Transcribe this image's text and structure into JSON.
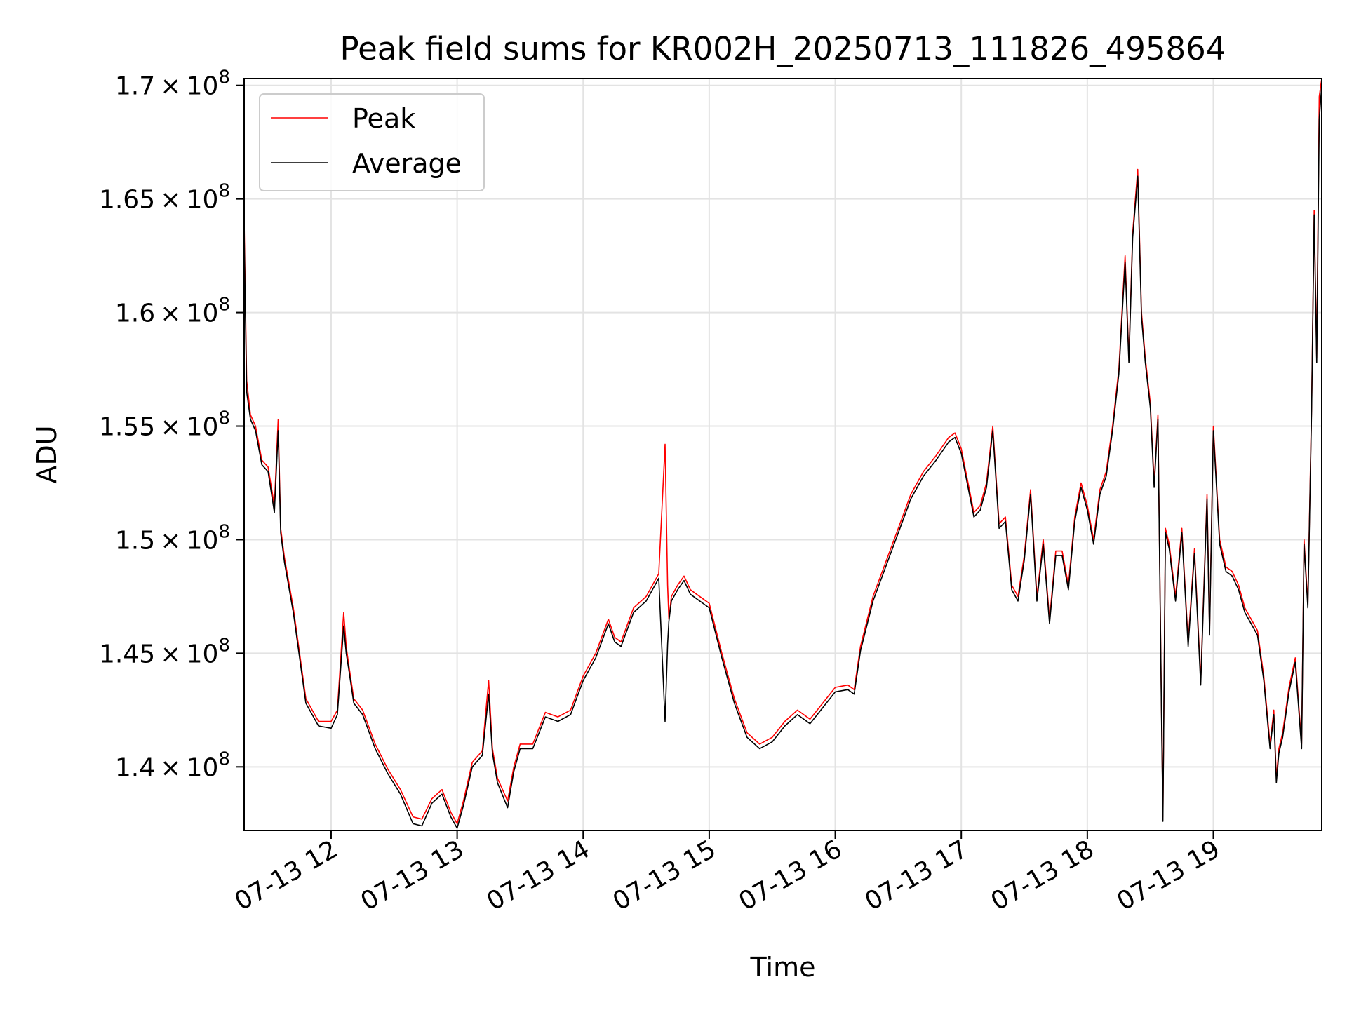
{
  "chart_data": {
    "type": "line",
    "title": "Peak field sums for KR002H_20250713_111826_495864",
    "xlabel": "Time",
    "ylabel": "ADU",
    "xlim_hours": [
      11.31,
      19.86
    ],
    "ylim": [
      137200000,
      170300000
    ],
    "grid": true,
    "legend_position": "top-left",
    "x_ticks": [
      {
        "value": 12,
        "label": "07-13 12"
      },
      {
        "value": 13,
        "label": "07-13 13"
      },
      {
        "value": 14,
        "label": "07-13 14"
      },
      {
        "value": 15,
        "label": "07-13 15"
      },
      {
        "value": 16,
        "label": "07-13 16"
      },
      {
        "value": 17,
        "label": "07-13 17"
      },
      {
        "value": 18,
        "label": "07-13 18"
      },
      {
        "value": 19,
        "label": "07-13 19"
      }
    ],
    "y_ticks": [
      {
        "value": 140000000,
        "mantissa": "1.4",
        "exp": "8"
      },
      {
        "value": 145000000,
        "mantissa": "1.45",
        "exp": "8"
      },
      {
        "value": 150000000,
        "mantissa": "1.5",
        "exp": "8"
      },
      {
        "value": 155000000,
        "mantissa": "1.55",
        "exp": "8"
      },
      {
        "value": 160000000,
        "mantissa": "1.6",
        "exp": "8"
      },
      {
        "value": 165000000,
        "mantissa": "1.65",
        "exp": "8"
      },
      {
        "value": 170000000,
        "mantissa": "1.7",
        "exp": "8"
      }
    ],
    "series": [
      {
        "name": "Peak",
        "color": "#ff0000",
        "x": [
          11.31,
          11.33,
          11.36,
          11.4,
          11.45,
          11.5,
          11.55,
          11.58,
          11.6,
          11.63,
          11.7,
          11.8,
          11.9,
          12.0,
          12.05,
          12.1,
          12.12,
          12.14,
          12.18,
          12.25,
          12.35,
          12.45,
          12.55,
          12.65,
          12.72,
          12.8,
          12.88,
          12.95,
          13.0,
          13.05,
          13.12,
          13.2,
          13.25,
          13.28,
          13.32,
          13.4,
          13.45,
          13.5,
          13.6,
          13.7,
          13.8,
          13.9,
          14.0,
          14.1,
          14.2,
          14.25,
          14.3,
          14.4,
          14.5,
          14.6,
          14.65,
          14.67,
          14.68,
          14.7,
          14.75,
          14.8,
          14.85,
          14.9,
          14.95,
          15.0,
          15.1,
          15.2,
          15.3,
          15.4,
          15.5,
          15.6,
          15.7,
          15.8,
          15.9,
          16.0,
          16.1,
          16.15,
          16.2,
          16.3,
          16.4,
          16.5,
          16.6,
          16.7,
          16.8,
          16.9,
          16.95,
          17.0,
          17.1,
          17.15,
          17.2,
          17.25,
          17.3,
          17.35,
          17.4,
          17.45,
          17.5,
          17.55,
          17.6,
          17.65,
          17.7,
          17.75,
          17.8,
          17.85,
          17.9,
          17.95,
          18.0,
          18.05,
          18.1,
          18.15,
          18.2,
          18.25,
          18.3,
          18.33,
          18.36,
          18.4,
          18.43,
          18.46,
          18.5,
          18.53,
          18.56,
          18.59,
          18.6,
          18.62,
          18.65,
          18.7,
          18.75,
          18.8,
          18.85,
          18.9,
          18.95,
          18.97,
          19.0,
          19.05,
          19.1,
          19.15,
          19.2,
          19.25,
          19.3,
          19.35,
          19.4,
          19.45,
          19.48,
          19.5,
          19.52,
          19.55,
          19.6,
          19.65,
          19.7,
          19.72,
          19.75,
          19.78,
          19.8,
          19.82,
          19.84,
          19.86
        ],
        "values": [
          164000000,
          157000000,
          155500000,
          155000000,
          153500000,
          153200000,
          151500000,
          155300000,
          150500000,
          149200000,
          147000000,
          143000000,
          142000000,
          142000000,
          142500000,
          146800000,
          145300000,
          144500000,
          143000000,
          142500000,
          141000000,
          139900000,
          139000000,
          137800000,
          137700000,
          138600000,
          139000000,
          138000000,
          137500000,
          138500000,
          140200000,
          140700000,
          143800000,
          140800000,
          139500000,
          138500000,
          140000000,
          141000000,
          141000000,
          142400000,
          142200000,
          142500000,
          144000000,
          145000000,
          146500000,
          145700000,
          145500000,
          147000000,
          147500000,
          148500000,
          154200000,
          148000000,
          146500000,
          147500000,
          148000000,
          148400000,
          147800000,
          147600000,
          147400000,
          147200000,
          145000000,
          143000000,
          141500000,
          141000000,
          141300000,
          142000000,
          142500000,
          142100000,
          142800000,
          143500000,
          143600000,
          143400000,
          145300000,
          147500000,
          149000000,
          150500000,
          152000000,
          153000000,
          153700000,
          154500000,
          154700000,
          154000000,
          151200000,
          151500000,
          152500000,
          155000000,
          150700000,
          151000000,
          148000000,
          147500000,
          149300000,
          152200000,
          147500000,
          150000000,
          146500000,
          149500000,
          149500000,
          148000000,
          151000000,
          152500000,
          151500000,
          150000000,
          152200000,
          153000000,
          155000000,
          157500000,
          162500000,
          158000000,
          163500000,
          166300000,
          160000000,
          158000000,
          156000000,
          152500000,
          155500000,
          142000000,
          137800000,
          150500000,
          149800000,
          147500000,
          150500000,
          145500000,
          149600000,
          143800000,
          152000000,
          146000000,
          155000000,
          150000000,
          148800000,
          148600000,
          148000000,
          147000000,
          146500000,
          146000000,
          144000000,
          141000000,
          142500000,
          139500000,
          140800000,
          141500000,
          143500000,
          144800000,
          141000000,
          150000000,
          147200000,
          156000000,
          164500000,
          158000000,
          169500000,
          170300000
        ]
      },
      {
        "name": "Average",
        "color": "#000000",
        "x": [
          11.31,
          11.33,
          11.36,
          11.4,
          11.45,
          11.5,
          11.55,
          11.58,
          11.6,
          11.63,
          11.7,
          11.8,
          11.9,
          12.0,
          12.05,
          12.1,
          12.12,
          12.14,
          12.18,
          12.25,
          12.35,
          12.45,
          12.55,
          12.65,
          12.72,
          12.8,
          12.88,
          12.95,
          13.0,
          13.05,
          13.12,
          13.2,
          13.25,
          13.28,
          13.32,
          13.4,
          13.45,
          13.5,
          13.6,
          13.7,
          13.8,
          13.9,
          14.0,
          14.1,
          14.2,
          14.25,
          14.3,
          14.4,
          14.5,
          14.6,
          14.65,
          14.67,
          14.68,
          14.7,
          14.75,
          14.8,
          14.85,
          14.9,
          14.95,
          15.0,
          15.1,
          15.2,
          15.3,
          15.4,
          15.5,
          15.6,
          15.7,
          15.8,
          15.9,
          16.0,
          16.1,
          16.15,
          16.2,
          16.3,
          16.4,
          16.5,
          16.6,
          16.7,
          16.8,
          16.9,
          16.95,
          17.0,
          17.1,
          17.15,
          17.2,
          17.25,
          17.3,
          17.35,
          17.4,
          17.45,
          17.5,
          17.55,
          17.6,
          17.65,
          17.7,
          17.75,
          17.8,
          17.85,
          17.9,
          17.95,
          18.0,
          18.05,
          18.1,
          18.15,
          18.2,
          18.25,
          18.3,
          18.33,
          18.36,
          18.4,
          18.43,
          18.46,
          18.5,
          18.53,
          18.56,
          18.59,
          18.6,
          18.62,
          18.65,
          18.7,
          18.75,
          18.8,
          18.85,
          18.9,
          18.95,
          18.97,
          19.0,
          19.05,
          19.1,
          19.15,
          19.2,
          19.25,
          19.3,
          19.35,
          19.4,
          19.45,
          19.48,
          19.5,
          19.52,
          19.55,
          19.6,
          19.65,
          19.7,
          19.72,
          19.75,
          19.78,
          19.8,
          19.82,
          19.84,
          19.86
        ],
        "values": [
          163500000,
          156500000,
          155300000,
          154800000,
          153300000,
          153000000,
          151200000,
          154800000,
          150300000,
          149000000,
          146800000,
          142800000,
          141800000,
          141700000,
          142300000,
          146200000,
          145000000,
          144300000,
          142800000,
          142300000,
          140800000,
          139700000,
          138800000,
          137500000,
          137400000,
          138400000,
          138800000,
          137800000,
          137300000,
          138300000,
          140000000,
          140500000,
          143200000,
          140600000,
          139300000,
          138200000,
          139800000,
          140800000,
          140800000,
          142200000,
          142000000,
          142300000,
          143800000,
          144800000,
          146300000,
          145500000,
          145300000,
          146800000,
          147300000,
          148300000,
          142000000,
          145400000,
          146400000,
          147300000,
          147800000,
          148200000,
          147600000,
          147400000,
          147200000,
          147000000,
          144800000,
          142800000,
          141300000,
          140800000,
          141100000,
          141800000,
          142300000,
          141900000,
          142600000,
          143300000,
          143400000,
          143200000,
          145100000,
          147300000,
          148800000,
          150300000,
          151800000,
          152800000,
          153500000,
          154300000,
          154500000,
          153800000,
          151000000,
          151300000,
          152300000,
          154800000,
          150500000,
          150800000,
          147800000,
          147300000,
          149100000,
          152000000,
          147300000,
          149800000,
          146300000,
          149300000,
          149300000,
          147800000,
          150800000,
          152300000,
          151300000,
          149800000,
          152000000,
          152800000,
          154800000,
          157300000,
          162200000,
          157800000,
          163300000,
          166000000,
          159800000,
          157800000,
          155800000,
          152300000,
          155300000,
          141800000,
          137600000,
          150300000,
          149600000,
          147300000,
          150300000,
          145300000,
          149400000,
          143600000,
          151800000,
          145800000,
          154800000,
          149800000,
          148600000,
          148400000,
          147800000,
          146800000,
          146300000,
          145800000,
          143800000,
          140800000,
          142300000,
          139300000,
          140600000,
          141300000,
          143300000,
          144600000,
          140800000,
          149800000,
          147000000,
          155800000,
          164300000,
          157800000,
          168500000,
          170000000
        ]
      }
    ]
  }
}
